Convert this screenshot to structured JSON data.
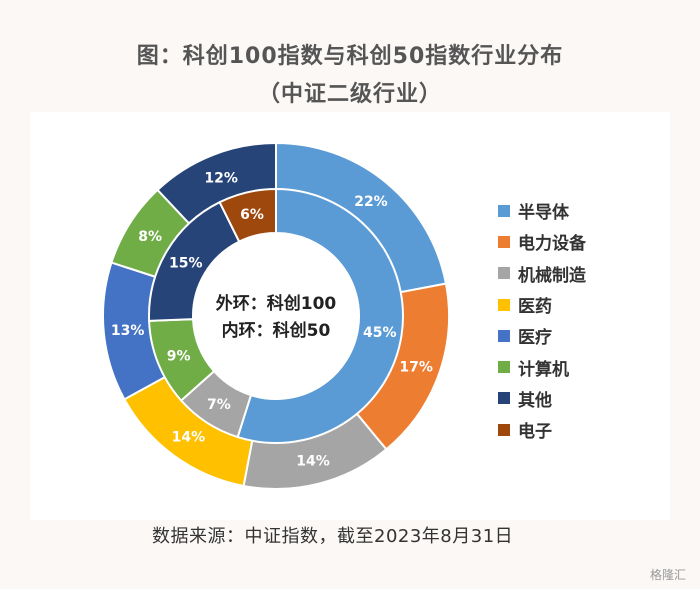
{
  "header": {
    "title_line1": "图：科创100指数与科创50指数行业分布",
    "title_line2": "（中证二级行业）"
  },
  "center": {
    "outer_label": "外环：科创100",
    "inner_label": "内环：科创50"
  },
  "source": "数据来源：中证指数，截至2023年8月31日",
  "watermark": "格隆汇",
  "chart_data": {
    "type": "pie",
    "title": "图：科创100指数与科创50指数行业分布",
    "subtitle": "（中证二级行业）",
    "legend_position": "right",
    "categories": [
      "半导体",
      "电力设备",
      "机械制造",
      "医药",
      "医疗",
      "计算机",
      "其他",
      "电子"
    ],
    "colors": [
      "#5b9bd5",
      "#ed7d31",
      "#a5a5a5",
      "#ffc000",
      "#4472c4",
      "#70ad47",
      "#264478",
      "#9e480e"
    ],
    "series": [
      {
        "name": "外环：科创100",
        "values": [
          22,
          17,
          14,
          14,
          13,
          8,
          12,
          0
        ],
        "labels": [
          "22%",
          "17%",
          "14%",
          "14%",
          "13%",
          "8%",
          "12%",
          ""
        ]
      },
      {
        "name": "内环：科创50",
        "values": [
          45,
          0,
          7,
          0,
          0,
          9,
          15,
          6
        ],
        "labels": [
          "45%",
          "",
          "7%",
          "",
          "",
          "9%",
          "15%",
          "6%"
        ]
      }
    ]
  }
}
